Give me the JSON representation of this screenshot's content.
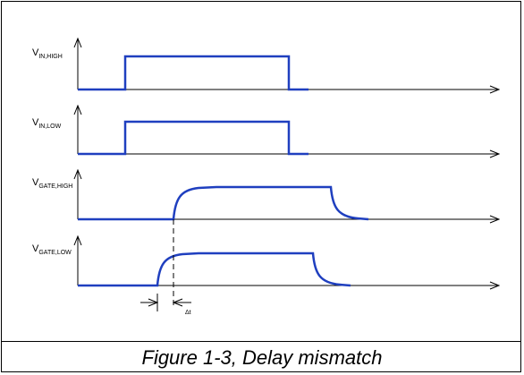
{
  "figure": {
    "caption": "Figure 1-3, Delay mismatch"
  },
  "signals": [
    {
      "label_main": "V",
      "label_sub": "IN,HIGH"
    },
    {
      "label_main": "V",
      "label_sub": "IN,LOW"
    },
    {
      "label_main": "V",
      "label_sub": "GATE,HIGH"
    },
    {
      "label_main": "V",
      "label_sub": "GATE,LOW"
    }
  ],
  "annotation": {
    "delta_label": "Δt"
  },
  "colors": {
    "waveform": "#1f3fbf",
    "axis": "#000000"
  }
}
